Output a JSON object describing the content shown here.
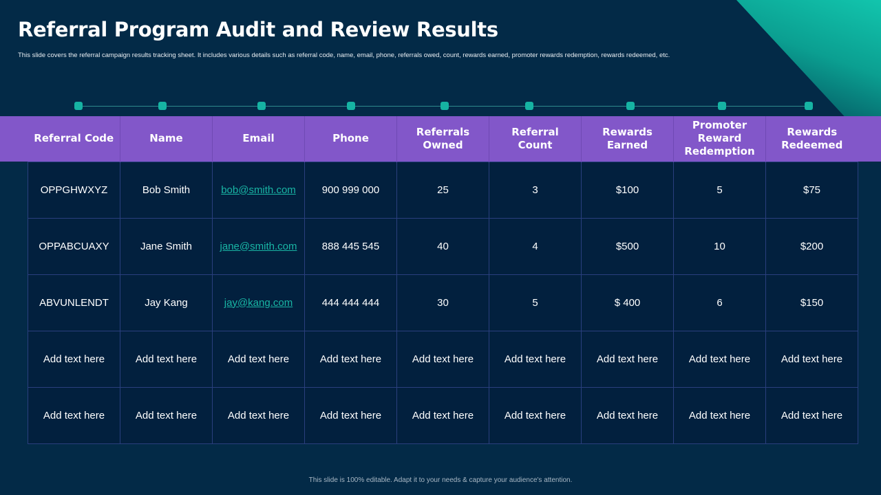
{
  "slide": {
    "title": "Referral Program Audit and Review Results",
    "subtitle": "This slide covers the referral campaign results tracking sheet. It includes various details such as referral code, name, email,  phone, referrals owed, count, rewards earned, promoter rewards redemption, rewards redeemed, etc.",
    "footer": "This slide is 100% editable.  Adapt it to your needs & capture your audience's attention."
  },
  "colors": {
    "background": "#032a47",
    "header": "#8257c9",
    "accent": "#16b3a3",
    "link": "#19b6a5"
  },
  "table": {
    "headers": [
      "Referral Code",
      "Name",
      "Email",
      "Phone",
      "Referrals Owned",
      "Referral Count",
      "Rewards Earned",
      "Promoter Reward Redemption",
      "Rewards Redeemed"
    ],
    "rows": [
      [
        "OPPGHWXYZ",
        "Bob Smith",
        "bob@smith.com",
        "900 999 000",
        "25",
        "3",
        "$100",
        "5",
        "$75"
      ],
      [
        "OPPABCUAXY",
        "Jane Smith",
        "jane@smith.com",
        "888 445 545",
        "40",
        "4",
        "$500",
        "10",
        "$200"
      ],
      [
        "ABVUNLENDT",
        "Jay Kang",
        "jay@kang.com",
        "444 444 444",
        "30",
        "5",
        "$ 400",
        "6",
        "$150"
      ],
      [
        "Add text here",
        "Add text here",
        "Add text here",
        "Add text here",
        "Add text here",
        "Add text here",
        "Add text here",
        "Add text here",
        "Add text here"
      ],
      [
        "Add text here",
        "Add text here",
        "Add text here",
        "Add text here",
        "Add text here",
        "Add text here",
        "Add text here",
        "Add text here",
        "Add text here"
      ]
    ]
  }
}
